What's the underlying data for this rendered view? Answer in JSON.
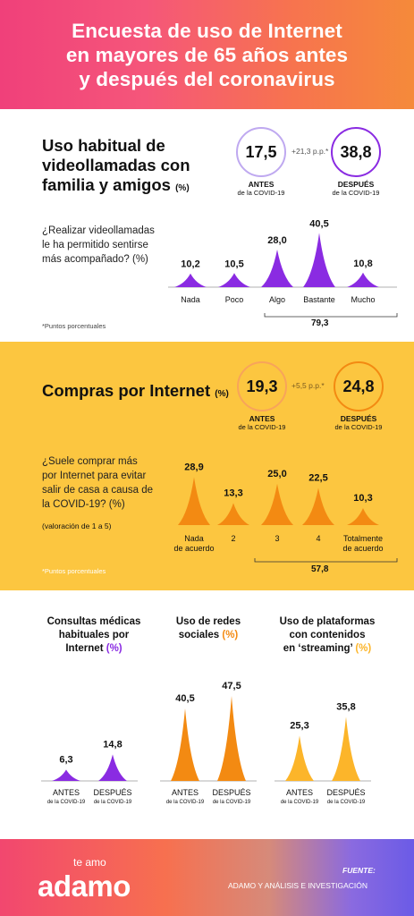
{
  "header": {
    "title_line1": "Encuesta de uso de Internet",
    "title_line2": "en mayores de 65 años antes",
    "title_line3": "y después del coronavirus"
  },
  "section1": {
    "title_line1": "Uso habitual de",
    "title_line2": "videollamadas con",
    "title_line3": "familia y amigos",
    "title_unit": "(%)",
    "before_value": "17,5",
    "after_value": "38,8",
    "diff": "+21,3 p.p.*",
    "before_label": "ANTES",
    "after_label": "DESPUÉS",
    "covid_caption": "de la COVID-19",
    "question_line1": "¿Realizar videollamadas",
    "question_line2": "le ha permitido sentirse",
    "question_line3": "más acompañado? (%)",
    "footnote": "*Puntos porcentuales",
    "bracket_total": "79,3"
  },
  "section2": {
    "title": "Compras por Internet",
    "title_unit": "(%)",
    "before_value": "19,3",
    "after_value": "24,8",
    "diff": "+5,5 p.p.*",
    "before_label": "ANTES",
    "after_label": "DESPUÉS",
    "covid_caption": "de la COVID-19",
    "question_line1": "¿Suele comprar más",
    "question_line2": "por Internet para evitar",
    "question_line3": "salir de casa a causa de",
    "question_line4": "la COVID-19? (%)",
    "scale_note": "(valoración de 1 a 5)",
    "footnote": "*Puntos porcentuales",
    "bracket_total": "57,8"
  },
  "section3": {
    "col1_line1": "Consultas médicas",
    "col1_line2": "habituales por",
    "col1_line3": "Internet",
    "col1_unit": "(%)",
    "col2_line1": "Uso de redes",
    "col2_line2": "sociales",
    "col2_unit": "(%)",
    "col3_line1": "Uso de plataformas",
    "col3_line2": "con contenidos",
    "col3_line3": "en ‘streaming’",
    "col3_unit": "(%)"
  },
  "footer": {
    "logo_small": "te amo",
    "logo": "adamo",
    "source_label": "FUENTE:",
    "source_text": "ADAMO Y ANÁLISIS E INVESTIGACIÓN"
  },
  "colors": {
    "purple": "#8a2be2",
    "orange": "#f38a12",
    "yellow": "#fcc640",
    "pink": "#f0407a"
  },
  "chart_data": [
    {
      "type": "bar",
      "name": "videollamadas",
      "categories": [
        "Nada",
        "Poco",
        "Algo",
        "Bastante",
        "Mucho"
      ],
      "values": [
        10.2,
        10.5,
        28.0,
        40.5,
        10.8
      ],
      "labels": [
        "10,2",
        "10,5",
        "28,0",
        "40,5",
        "10,8"
      ],
      "color": "#8a2be2"
    },
    {
      "type": "bar",
      "name": "compras",
      "categories": [
        "Nada de acuerdo",
        "2",
        "3",
        "4",
        "Totalmente de acuerdo"
      ],
      "values": [
        28.9,
        13.3,
        25.0,
        22.5,
        10.3
      ],
      "labels": [
        "28,9",
        "13,3",
        "25,0",
        "22,5",
        "10,3"
      ],
      "color": "#f38a12"
    },
    {
      "type": "bar",
      "name": "consultas",
      "categories": [
        "ANTES",
        "DESPUÉS"
      ],
      "values": [
        6.3,
        14.8
      ],
      "labels": [
        "6,3",
        "14,8"
      ],
      "color": "#8a2be2"
    },
    {
      "type": "bar",
      "name": "redes",
      "categories": [
        "ANTES",
        "DESPUÉS"
      ],
      "values": [
        40.5,
        47.5
      ],
      "labels": [
        "40,5",
        "47,5"
      ],
      "color": "#f38a12"
    },
    {
      "type": "bar",
      "name": "streaming",
      "categories": [
        "ANTES",
        "DESPUÉS"
      ],
      "values": [
        25.3,
        35.8
      ],
      "labels": [
        "25,3",
        "35,8"
      ],
      "color": "#fcb52a"
    }
  ]
}
